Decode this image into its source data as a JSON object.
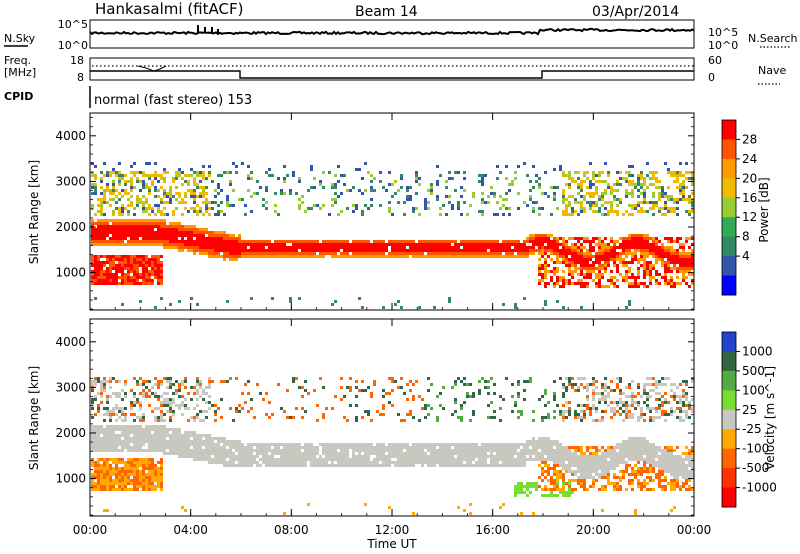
{
  "header": {
    "station": "Hankasalmi (fitACF)",
    "beam": "Beam 14",
    "date": "03/Apr/2014"
  },
  "noise_panel": {
    "left_label": "N.Sky",
    "right_label": "N.Search",
    "y_ticks_left": [
      "10^5",
      "10^0"
    ],
    "y_ticks_right": [
      "10^5",
      "10^0"
    ]
  },
  "freq_panel": {
    "left_label_1": "Freq.",
    "left_label_2": "[MHz]",
    "right_label": "Nave",
    "y_ticks_left": [
      "18",
      "8"
    ],
    "y_ticks_right": [
      "60",
      "0"
    ]
  },
  "cpid": {
    "label": "CPID",
    "mode_text": "normal (fast stereo) 153"
  },
  "chart_data": [
    {
      "type": "heatmap",
      "name": "power",
      "ylabel": "Slant Range [km]",
      "ylim": [
        180,
        4500
      ],
      "y_ticks": [
        1000,
        2000,
        3000,
        4000
      ],
      "x_ticks": [
        "00:00",
        "04:00",
        "08:00",
        "12:00",
        "16:00",
        "20:00",
        "00:00"
      ],
      "colorbar": {
        "label": "Power [dB]",
        "ticks": [
          "28",
          "24",
          "20",
          "16",
          "12",
          "8",
          "4"
        ],
        "colors": [
          "#ff0000",
          "#ff5500",
          "#ff9900",
          "#eebb00",
          "#99cc33",
          "#33aa55",
          "#338866",
          "#3355aa",
          "#0000ff"
        ]
      }
    },
    {
      "type": "heatmap",
      "name": "velocity",
      "ylabel": "Slant Range [km]",
      "ylim": [
        180,
        4500
      ],
      "y_ticks": [
        1000,
        2000,
        3000,
        4000
      ],
      "x_ticks": [
        "00:00",
        "04:00",
        "08:00",
        "12:00",
        "16:00",
        "20:00",
        "00:00"
      ],
      "xlabel": "Time UT",
      "colorbar": {
        "label": "Velocity [m s^-1]",
        "ticks": [
          "1000",
          "500",
          "100",
          "25",
          "-25",
          "-100",
          "-500",
          "-1000"
        ],
        "colors": [
          "#2244cc",
          "#336644",
          "#55aa44",
          "#77dd33",
          "#c8c8c0",
          "#ffaa00",
          "#ff6600",
          "#ff3300",
          "#ff0000"
        ]
      }
    }
  ]
}
